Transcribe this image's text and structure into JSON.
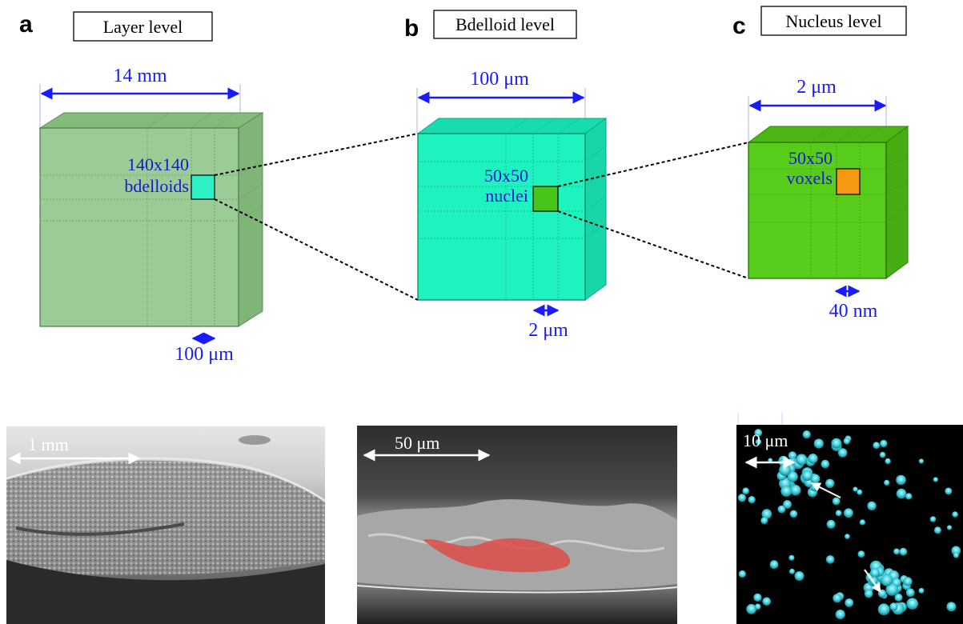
{
  "panels": [
    {
      "letter": "a",
      "title": "Layer level",
      "top_dimension": "14 mm",
      "inner_label": [
        "140x140",
        "bdelloids"
      ],
      "bottom_dimension": "100 μm",
      "photo_scale": "1 mm",
      "colors": {
        "front": "#9ccc95",
        "top": "#83bb7b",
        "side": "#7fb677",
        "cell": "#2ef0c4"
      }
    },
    {
      "letter": "b",
      "title": "Bdelloid level",
      "top_dimension": "100 μm",
      "inner_label": [
        "50x50",
        "nuclei"
      ],
      "bottom_dimension": "2 μm",
      "photo_scale": "50 μm",
      "colors": {
        "front": "#1ef2bf",
        "top": "#17dcae",
        "side": "#18d6a8",
        "cell": "#49c41a"
      }
    },
    {
      "letter": "c",
      "title": "Nucleus level",
      "top_dimension": "2 μm",
      "inner_label": [
        "50x50",
        "voxels"
      ],
      "bottom_dimension": "40 nm",
      "photo_scale": "10 μm",
      "colors": {
        "front": "#58cc1a",
        "top": "#4cb514",
        "side": "#45ad12",
        "cell": "#f59a10"
      }
    }
  ],
  "arrow_color": "#1a1aff"
}
